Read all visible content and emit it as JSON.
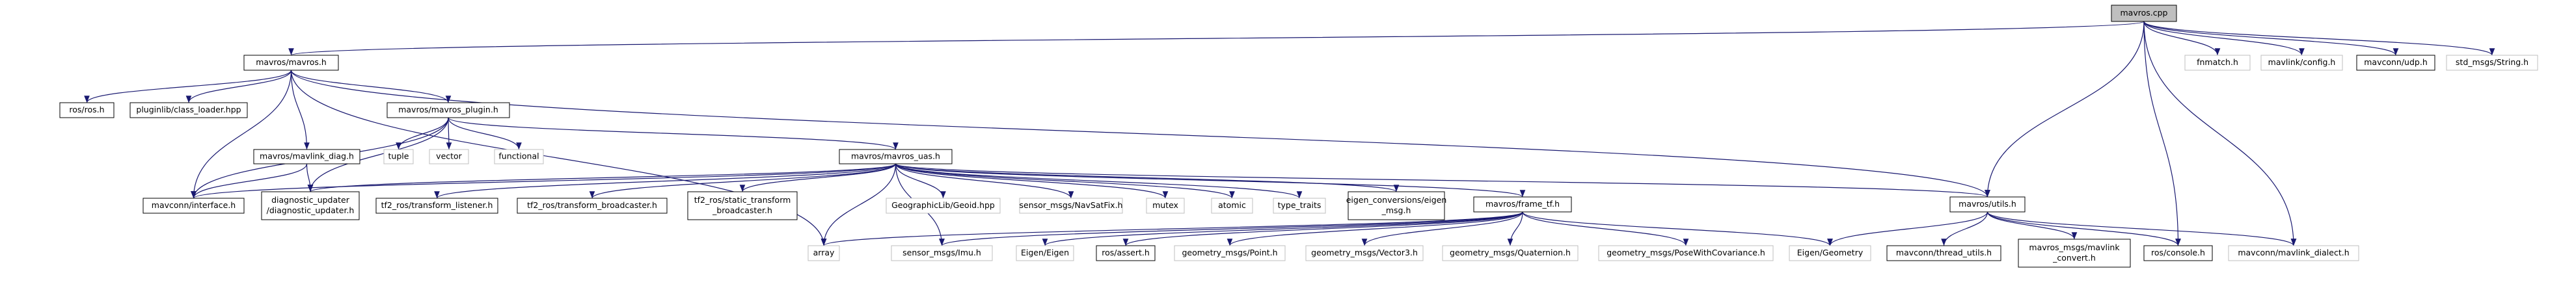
{
  "nodes": [
    {
      "lines": [
        "mavros.cpp"
      ]
    },
    {
      "lines": [
        "mavros/mavros.h"
      ]
    },
    {
      "lines": [
        "fnmatch.h"
      ]
    },
    {
      "lines": [
        "mavlink/config.h"
      ]
    },
    {
      "lines": [
        "mavconn/udp.h"
      ]
    },
    {
      "lines": [
        "std_msgs/String.h"
      ]
    },
    {
      "lines": [
        "ros/ros.h"
      ]
    },
    {
      "lines": [
        "pluginlib/class_loader.hpp"
      ]
    },
    {
      "lines": [
        "mavros/mavros_plugin.h"
      ]
    },
    {
      "lines": [
        "tuple"
      ]
    },
    {
      "lines": [
        "vector"
      ]
    },
    {
      "lines": [
        "functional"
      ]
    },
    {
      "lines": [
        "mavros/mavlink_diag.h"
      ]
    },
    {
      "lines": [
        "mavros/mavros_uas.h"
      ]
    },
    {
      "lines": [
        "mavconn/interface.h"
      ]
    },
    {
      "lines": [
        "diagnostic_updater",
        "/diagnostic_updater.h"
      ]
    },
    {
      "lines": [
        "tf2_ros/transform_listener.h"
      ]
    },
    {
      "lines": [
        "tf2_ros/transform_broadcaster.h"
      ]
    },
    {
      "lines": [
        "tf2_ros/static_transform",
        "_broadcaster.h"
      ]
    },
    {
      "lines": [
        "GeographicLib/Geoid.hpp"
      ]
    },
    {
      "lines": [
        "sensor_msgs/NavSatFix.h"
      ]
    },
    {
      "lines": [
        "mutex"
      ]
    },
    {
      "lines": [
        "atomic"
      ]
    },
    {
      "lines": [
        "type_traits"
      ]
    },
    {
      "lines": [
        "eigen_conversions/eigen",
        "_msg.h"
      ]
    },
    {
      "lines": [
        "mavros/frame_tf.h"
      ]
    },
    {
      "lines": [
        "mavros/utils.h"
      ]
    },
    {
      "lines": [
        "array"
      ]
    },
    {
      "lines": [
        "sensor_msgs/Imu.h"
      ]
    },
    {
      "lines": [
        "Eigen/Eigen"
      ]
    },
    {
      "lines": [
        "ros/assert.h"
      ]
    },
    {
      "lines": [
        "geometry_msgs/Point.h"
      ]
    },
    {
      "lines": [
        "geometry_msgs/Vector3.h"
      ]
    },
    {
      "lines": [
        "geometry_msgs/Quaternion.h"
      ]
    },
    {
      "lines": [
        "geometry_msgs/PoseWithCovariance.h"
      ]
    },
    {
      "lines": [
        "Eigen/Geometry"
      ]
    },
    {
      "lines": [
        "mavconn/thread_utils.h"
      ]
    },
    {
      "lines": [
        "mavros_msgs/mavlink",
        "_convert.h"
      ]
    },
    {
      "lines": [
        "ros/console.h"
      ]
    },
    {
      "lines": [
        "mavconn/mavlink_dialect.h"
      ]
    }
  ]
}
